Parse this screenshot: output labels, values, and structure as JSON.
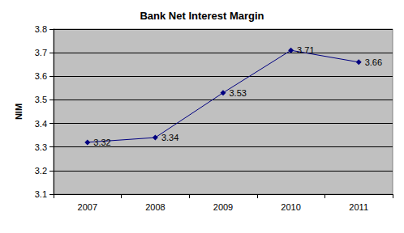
{
  "chart_data": {
    "type": "line",
    "title": "Bank Net Interest Margin",
    "y_label": "NIM",
    "categories": [
      "2007",
      "2008",
      "2009",
      "2010",
      "2011"
    ],
    "values": [
      3.32,
      3.34,
      3.53,
      3.71,
      3.66
    ],
    "color": "#000080",
    "marker": "diamond",
    "line_style": "solid",
    "ylim": [
      3.1,
      3.8
    ],
    "yticks": [
      3.1,
      3.2,
      3.3,
      3.4,
      3.5,
      3.6,
      3.7,
      3.8
    ],
    "grid": true,
    "data_labels": true
  }
}
